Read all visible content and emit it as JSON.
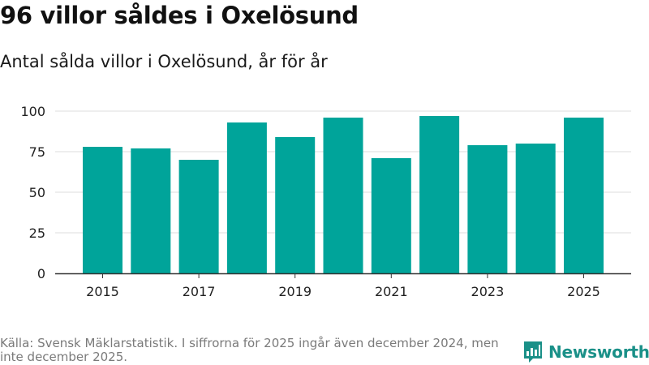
{
  "title": "96 villor såldes i Oxelösund",
  "subtitle": "Antal sålda villor i Oxelösund, år för år",
  "source": "Källa: Svensk Mäklarstatistik. I siffrorna för 2025 ingår även december 2024, men inte december 2025.",
  "brand": {
    "name": "Newsworthy",
    "icon": "bar-chart-logo-icon",
    "color": "#1a9088"
  },
  "colors": {
    "bar": "#00a49a",
    "grid": "#dddddd",
    "axis": "#333333"
  },
  "chart_data": {
    "type": "bar",
    "title": "96 villor såldes i Oxelösund",
    "xlabel": "",
    "ylabel": "",
    "categories": [
      "2015",
      "2016",
      "2017",
      "2018",
      "2019",
      "2020",
      "2021",
      "2022",
      "2023",
      "2024",
      "2025"
    ],
    "values": [
      78,
      77,
      70,
      93,
      84,
      96,
      71,
      97,
      79,
      80,
      96
    ],
    "x_tick_labels": [
      "2015",
      "2017",
      "2019",
      "2021",
      "2023",
      "2025"
    ],
    "y_ticks": [
      0,
      25,
      50,
      75,
      100
    ],
    "ylim": [
      0,
      100
    ],
    "grid": true
  }
}
